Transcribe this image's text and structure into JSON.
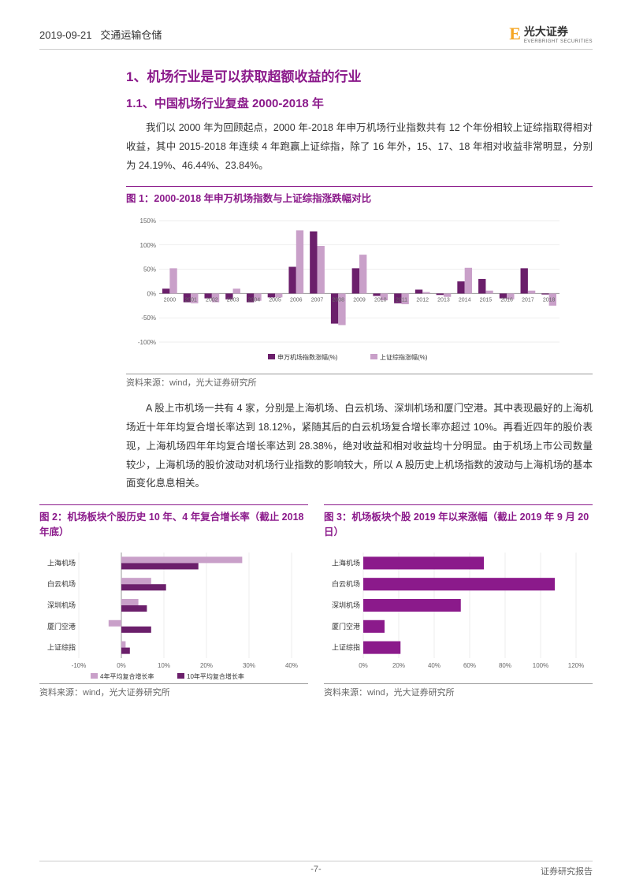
{
  "header": {
    "date": "2019-09-21",
    "category": "交通运输仓储",
    "brand": "光大证券",
    "brand_sub": "EVERBRIGHT SECURITIES"
  },
  "sections": {
    "h1": "1、机场行业是可以获取超额收益的行业",
    "h2": "1.1、中国机场行业复盘 2000-2018 年",
    "para1": "我们以 2000 年为回顾起点，2000 年-2018 年申万机场行业指数共有 12 个年份相较上证综指取得相对收益，其中 2015-2018 年连续 4 年跑赢上证综指，除了 16 年外，15、17、18 年相对收益非常明显，分别为 24.19%、46.44%、23.84%。",
    "para2": "A 股上市机场一共有 4 家，分别是上海机场、白云机场、深圳机场和厦门空港。其中表现最好的上海机场近十年年均复合增长率达到 18.12%，紧随其后的白云机场复合增长率亦超过 10%。再看近四年的股价表现，上海机场四年年均复合增长率达到 28.38%，绝对收益和相对收益均十分明显。由于机场上市公司数量较少，上海机场的股价波动对机场行业指数的影响较大，所以 A 股历史上机场指数的波动与上海机场的基本面变化息息相关。"
  },
  "chart1": {
    "title": "图 1：2000-2018 年申万机场指数与上证综指涨跌幅对比",
    "type": "bar",
    "years": [
      "2000",
      "2001",
      "2002",
      "2003",
      "2004",
      "2005",
      "2006",
      "2007",
      "2008",
      "2009",
      "2010",
      "2011",
      "2012",
      "2013",
      "2014",
      "2015",
      "2016",
      "2017",
      "2018"
    ],
    "series": [
      {
        "name": "申万机场指数涨幅(%)",
        "color": "#6b1f6b",
        "values": [
          10,
          -18,
          -10,
          -12,
          -18,
          -8,
          55,
          128,
          -62,
          52,
          -5,
          -20,
          8,
          -3,
          25,
          30,
          -10,
          52,
          -2
        ]
      },
      {
        "name": "上证综指涨幅(%)",
        "color": "#c9a0c9",
        "values": [
          52,
          -20,
          -18,
          10,
          -15,
          -8,
          130,
          98,
          -65,
          80,
          -14,
          -22,
          3,
          -7,
          53,
          6,
          -12,
          6,
          -25
        ]
      }
    ],
    "ylim": [
      -100,
      150
    ],
    "ytick_step": 50,
    "yticks": [
      "-100%",
      "-50%",
      "0%",
      "50%",
      "100%",
      "150%"
    ],
    "background_color": "#ffffff",
    "grid_color": "#dddddd",
    "label_fontsize": 8,
    "source": "资料来源：wind，光大证券研究所"
  },
  "chart2": {
    "title": "图 2：机场板块个股历史 10 年、4 年复合增长率（截止 2018 年底）",
    "type": "bar-horizontal",
    "categories": [
      "上海机场",
      "白云机场",
      "深圳机场",
      "厦门空港",
      "上证综指"
    ],
    "series": [
      {
        "name": "4年平均复合增长率",
        "color": "#c9a0c9",
        "values": [
          28.4,
          7,
          4,
          -3,
          1
        ]
      },
      {
        "name": "10年平均复合增长率",
        "color": "#6b1f6b",
        "values": [
          18.1,
          10.5,
          6,
          7,
          2
        ]
      }
    ],
    "xlim": [
      -10,
      40
    ],
    "xtick_step": 10,
    "xticks": [
      "-10%",
      "0%",
      "10%",
      "20%",
      "30%",
      "40%"
    ],
    "background_color": "#ffffff",
    "grid_color": "#dddddd",
    "label_fontsize": 9,
    "source": "资料来源：wind，光大证券研究所"
  },
  "chart3": {
    "title": "图 3：机场板块个股 2019 年以来涨幅（截止 2019 年 9 月 20 日）",
    "type": "bar-horizontal",
    "categories": [
      "上海机场",
      "白云机场",
      "深圳机场",
      "厦门空港",
      "上证综指"
    ],
    "series": [
      {
        "name": "",
        "color": "#8b1a8b",
        "values": [
          68,
          108,
          55,
          12,
          21
        ]
      }
    ],
    "xlim": [
      0,
      120
    ],
    "xtick_step": 20,
    "xticks": [
      "0%",
      "20%",
      "40%",
      "60%",
      "80%",
      "100%",
      "120%"
    ],
    "background_color": "#ffffff",
    "grid_color": "#dddddd",
    "label_fontsize": 9,
    "source": "资料来源：wind，光大证券研究所"
  },
  "footer": {
    "page": "-7-",
    "right": "证券研究报告"
  }
}
